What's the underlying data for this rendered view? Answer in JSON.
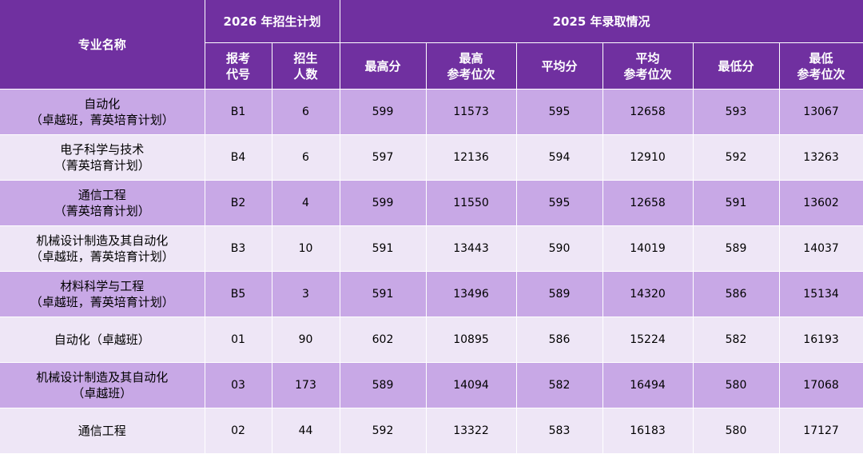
{
  "header": {
    "major_name": "专业名称",
    "plan_2026": "2026 年招生计划",
    "result_2025": "2025 年录取情况",
    "sub": {
      "code": [
        "报考",
        "代号"
      ],
      "count": [
        "招生",
        "人数"
      ],
      "max_score": [
        "最高分"
      ],
      "max_rank": [
        "最高",
        "参考位次"
      ],
      "avg_score": [
        "平均分"
      ],
      "avg_rank": [
        "平均",
        "参考位次"
      ],
      "min_score": [
        "最低分"
      ],
      "min_rank": [
        "最低",
        "参考位次"
      ]
    }
  },
  "rows": [
    {
      "name": [
        "自动化",
        "（卓越班，菁英培育计划）"
      ],
      "code": "B1",
      "count": "6",
      "max_score": "599",
      "max_rank": "11573",
      "avg_score": "595",
      "avg_rank": "12658",
      "min_score": "593",
      "min_rank": "13067"
    },
    {
      "name": [
        "电子科学与技术",
        "（菁英培育计划）"
      ],
      "code": "B4",
      "count": "6",
      "max_score": "597",
      "max_rank": "12136",
      "avg_score": "594",
      "avg_rank": "12910",
      "min_score": "592",
      "min_rank": "13263"
    },
    {
      "name": [
        "通信工程",
        "（菁英培育计划）"
      ],
      "code": "B2",
      "count": "4",
      "max_score": "599",
      "max_rank": "11550",
      "avg_score": "595",
      "avg_rank": "12658",
      "min_score": "591",
      "min_rank": "13602"
    },
    {
      "name": [
        "机械设计制造及其自动化",
        "（卓越班，菁英培育计划）"
      ],
      "code": "B3",
      "count": "10",
      "max_score": "591",
      "max_rank": "13443",
      "avg_score": "590",
      "avg_rank": "14019",
      "min_score": "589",
      "min_rank": "14037"
    },
    {
      "name": [
        "材料科学与工程",
        "（卓越班，菁英培育计划）"
      ],
      "code": "B5",
      "count": "3",
      "max_score": "591",
      "max_rank": "13496",
      "avg_score": "589",
      "avg_rank": "14320",
      "min_score": "586",
      "min_rank": "15134"
    },
    {
      "name": [
        "自动化（卓越班）"
      ],
      "code": "01",
      "count": "90",
      "max_score": "602",
      "max_rank": "10895",
      "avg_score": "586",
      "avg_rank": "15224",
      "min_score": "582",
      "min_rank": "16193"
    },
    {
      "name": [
        "机械设计制造及其自动化",
        "（卓越班）"
      ],
      "code": "03",
      "count": "173",
      "max_score": "589",
      "max_rank": "14094",
      "avg_score": "582",
      "avg_rank": "16494",
      "min_score": "580",
      "min_rank": "17068"
    },
    {
      "name": [
        "通信工程"
      ],
      "code": "02",
      "count": "44",
      "max_score": "592",
      "max_rank": "13322",
      "avg_score": "583",
      "avg_rank": "16183",
      "min_score": "580",
      "min_rank": "17127"
    }
  ]
}
